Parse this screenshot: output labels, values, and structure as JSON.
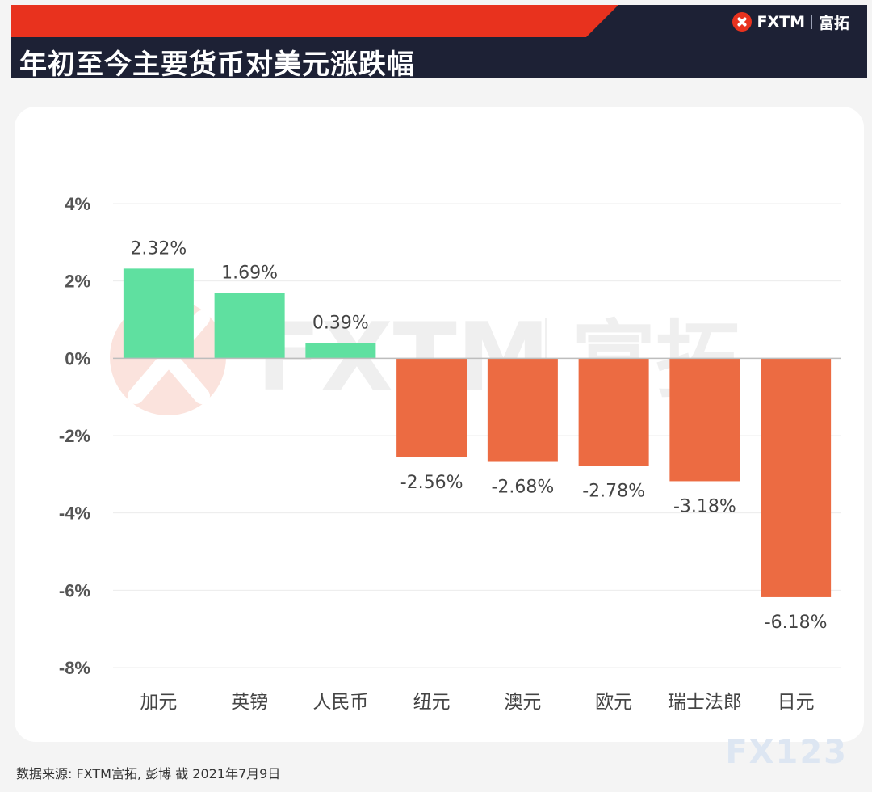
{
  "header": {
    "title": "年初至今主要货币对美元涨跌幅",
    "brand_name": "FXTM",
    "brand_cn": "富拓"
  },
  "watermark": {
    "brand_name": "FXTM",
    "brand_cn": "富拓",
    "corner_mark": "FX123"
  },
  "footer": {
    "source": "数据来源: FXTM富拓, 彭博 截 2021年7月9日"
  },
  "colors": {
    "positive": "#5fe0a0",
    "negative": "#ec6b42",
    "header_red": "#e8321e",
    "header_dark": "#1d2135"
  },
  "chart_data": {
    "type": "bar",
    "title": "年初至今主要货币对美元涨跌幅",
    "xlabel": "",
    "ylabel": "",
    "categories": [
      "加元",
      "英镑",
      "人民币",
      "纽元",
      "澳元",
      "欧元",
      "瑞士法郎",
      "日元"
    ],
    "values": [
      2.32,
      1.69,
      0.39,
      -2.56,
      -2.68,
      -2.78,
      -3.18,
      -6.18
    ],
    "data_labels": [
      "2.32%",
      "1.69%",
      "0.39%",
      "-2.56%",
      "-2.68%",
      "-2.78%",
      "-3.18%",
      "-6.18%"
    ],
    "ylim": [
      -8,
      4
    ],
    "yticks": [
      4,
      2,
      0,
      -2,
      -4,
      -6,
      -8
    ],
    "ytick_labels": [
      "4%",
      "2%",
      "0%",
      "-2%",
      "-4%",
      "-6%",
      "-8%"
    ],
    "grid": true,
    "legend": "none"
  }
}
